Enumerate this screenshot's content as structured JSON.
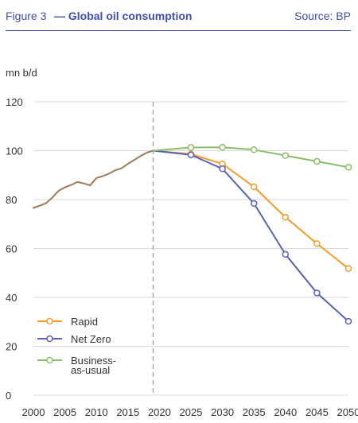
{
  "header": {
    "figure_number": "Figure 3",
    "title": "— Global oil consumption",
    "source": "Source: BP"
  },
  "chart_data": {
    "type": "line",
    "ylabel": "mn b/d",
    "ylim": [
      0,
      120
    ],
    "yticks": [
      0,
      20,
      40,
      60,
      80,
      100,
      120
    ],
    "xlim": [
      2000,
      2050
    ],
    "xticks": [
      2000,
      2005,
      2010,
      2015,
      2020,
      2025,
      2030,
      2035,
      2040,
      2045,
      2050
    ],
    "grid": "horizontal",
    "divider_year": 2019,
    "legend_position": "bottom-left",
    "colors": {
      "history": "#9b7b5b",
      "Rapid": "#f39c2a",
      "Net Zero": "#5b61b3",
      "Business-as-usual": "#8cbd6b",
      "grid": "#d9d9d9",
      "divider": "#a0a0a0"
    },
    "series": [
      {
        "name": "",
        "key": "history",
        "markers": false,
        "x": [
          2000,
          2001,
          2002,
          2003,
          2004,
          2005,
          2006,
          2007,
          2008,
          2009,
          2010,
          2011,
          2012,
          2013,
          2014,
          2015,
          2016,
          2017,
          2018,
          2019
        ],
        "y": [
          76.6,
          77.5,
          78.5,
          80.8,
          83.6,
          85.0,
          86.0,
          87.2,
          86.6,
          85.8,
          88.8,
          89.6,
          90.6,
          92.0,
          92.8,
          94.6,
          96.2,
          97.8,
          99.2,
          100.0
        ]
      },
      {
        "name": "Rapid",
        "key": "Rapid",
        "markers": true,
        "x": [
          2019,
          2025,
          2030,
          2035,
          2040,
          2045,
          2050
        ],
        "y": [
          100.0,
          98.6,
          94.6,
          85.2,
          72.8,
          62.0,
          51.8
        ]
      },
      {
        "name": "Net Zero",
        "key": "Net Zero",
        "markers": true,
        "x": [
          2019,
          2025,
          2030,
          2035,
          2040,
          2045,
          2050
        ],
        "y": [
          100.0,
          98.3,
          92.6,
          78.4,
          57.6,
          41.8,
          30.2
        ]
      },
      {
        "name": "Business-as-usual",
        "key": "Business-as-usual",
        "markers": true,
        "x": [
          2019,
          2025,
          2030,
          2035,
          2040,
          2045,
          2050
        ],
        "y": [
          100.0,
          101.3,
          101.4,
          100.4,
          98.0,
          95.6,
          93.2
        ]
      }
    ],
    "legend": [
      {
        "label_lines": [
          "Rapid"
        ],
        "key": "Rapid"
      },
      {
        "label_lines": [
          "Net Zero"
        ],
        "key": "Net Zero"
      },
      {
        "label_lines": [
          "Business-",
          "as-usual"
        ],
        "key": "Business-as-usual"
      }
    ]
  }
}
